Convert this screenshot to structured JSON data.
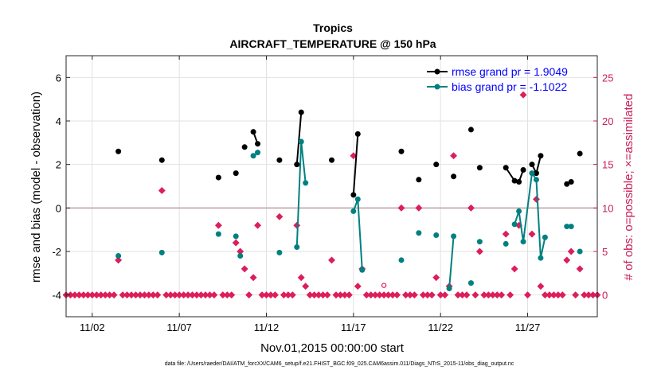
{
  "chart_data": {
    "type": "line",
    "title": "Tropics",
    "subtitle": "AIRCRAFT_TEMPERATURE @ 150 hPa",
    "xlabel": "Nov.01,2015 00:00:00 start",
    "ylabel_left": "rmse and bias (model - observation)",
    "ylabel_right": "# of obs: o=possible; ×=assimilated",
    "footer": "data file: /Users/raeder/DAI/ATM_forcXX/CAM6_setup/f.e21.FHIST_BGC.f09_025.CAM6assim.011/Diags_NTrS_2015-11/obs_diag_output.nc",
    "xlim": [
      0.5,
      31.0
    ],
    "ylim_left": [
      -5,
      7
    ],
    "ylim_right": [
      -2.5,
      27.5
    ],
    "x_ticks": [
      2,
      7,
      12,
      17,
      22,
      27
    ],
    "x_tick_labels": [
      "11/02",
      "11/07",
      "11/12",
      "11/17",
      "11/22",
      "11/27"
    ],
    "y_ticks_left": [
      -4,
      -2,
      0,
      2,
      4,
      6
    ],
    "y_tick_labels_left": [
      "-4",
      "-2",
      "0",
      "2",
      "4",
      "6"
    ],
    "y_ticks_right": [
      0,
      5,
      10,
      15,
      20,
      25
    ],
    "y_tick_labels_right": [
      "0",
      "5",
      "10",
      "15",
      "20",
      "25"
    ],
    "grid": true,
    "legend_position": "top-right",
    "colors": {
      "rmse": "#000000",
      "bias": "#008080",
      "obs": "#dc1e5a",
      "zero_line": "#bfa0a0",
      "right_axis": "#c81e5a",
      "legend_text": "#0000ff"
    },
    "series": [
      {
        "name": "rmse grand pr = 1.9049",
        "x": [
          3.5,
          6.0,
          9.25,
          10.25,
          10.75,
          11.25,
          11.5,
          12.75,
          13.75,
          14.0,
          15.75,
          17.0,
          17.25,
          19.75,
          20.75,
          21.75,
          22.75,
          23.75,
          24.25,
          25.75,
          26.25,
          26.5,
          26.75,
          27.25,
          27.5,
          27.75,
          29.25,
          29.5,
          30.0
        ],
        "y": [
          2.6,
          2.2,
          1.4,
          1.6,
          2.8,
          3.5,
          2.95,
          2.2,
          2.0,
          4.4,
          2.2,
          0.6,
          3.4,
          2.6,
          1.3,
          2.0,
          1.45,
          3.6,
          1.85,
          1.85,
          1.25,
          1.2,
          1.75,
          2.0,
          1.6,
          2.4,
          1.1,
          1.2,
          2.5
        ],
        "segments": [
          [
            5,
            6
          ],
          [
            8,
            9
          ],
          [
            11,
            12
          ],
          [
            19,
            20,
            21,
            22
          ],
          [
            23,
            24,
            25
          ],
          [
            26,
            27
          ]
        ]
      },
      {
        "name": "bias grand pr = -1.1022",
        "x": [
          3.5,
          6.0,
          9.25,
          10.25,
          10.5,
          11.25,
          11.5,
          12.75,
          13.75,
          14.0,
          14.25,
          17.0,
          17.25,
          17.5,
          19.75,
          20.75,
          21.75,
          22.5,
          22.75,
          23.75,
          24.25,
          25.75,
          26.25,
          26.5,
          26.75,
          27.25,
          27.5,
          27.75,
          28.0,
          29.25,
          29.5,
          30.0
        ],
        "y": [
          -2.2,
          -2.05,
          -1.2,
          -1.3,
          -2.2,
          2.4,
          2.55,
          -2.05,
          -1.8,
          3.05,
          1.15,
          -0.15,
          0.4,
          -2.85,
          -2.4,
          -1.15,
          -1.25,
          -3.7,
          -1.3,
          -3.45,
          -1.55,
          -1.65,
          -0.75,
          -0.15,
          -1.55,
          1.6,
          1.3,
          -2.3,
          -1.35,
          -0.85,
          -0.85,
          -2.0
        ],
        "segments": [
          [
            5,
            6
          ],
          [
            8,
            9,
            10
          ],
          [
            11,
            12,
            13
          ],
          [
            17,
            18
          ],
          [
            22,
            23,
            24,
            25,
            26,
            27,
            28
          ],
          [
            29,
            30
          ]
        ]
      },
      {
        "name": "assimilated",
        "x": [
          3.5,
          6.0,
          9.25,
          10.25,
          10.5,
          10.75,
          11.25,
          11.5,
          12.75,
          13.75,
          14.0,
          14.25,
          14.5,
          15.75,
          17.0,
          17.25,
          17.5,
          19.75,
          20.75,
          21.75,
          22.5,
          22.75,
          23.75,
          24.25,
          25.75,
          26.25,
          26.5,
          26.75,
          27.25,
          27.5,
          27.75,
          28.0,
          29.25,
          29.5,
          30.0
        ],
        "y": [
          4,
          12,
          8,
          6,
          5,
          3,
          2,
          8,
          9,
          8,
          2,
          1,
          0,
          4,
          16,
          1,
          3,
          10,
          10,
          2,
          1,
          16,
          10,
          5,
          7,
          3,
          8,
          23,
          7,
          11,
          1,
          0,
          4,
          5,
          3
        ],
        "counts_zero_x_start": 0.5,
        "counts_zero_x_step": 0.25
      },
      {
        "name": "possible",
        "x": [
          18.75
        ],
        "y": [
          1.1
        ]
      }
    ]
  }
}
